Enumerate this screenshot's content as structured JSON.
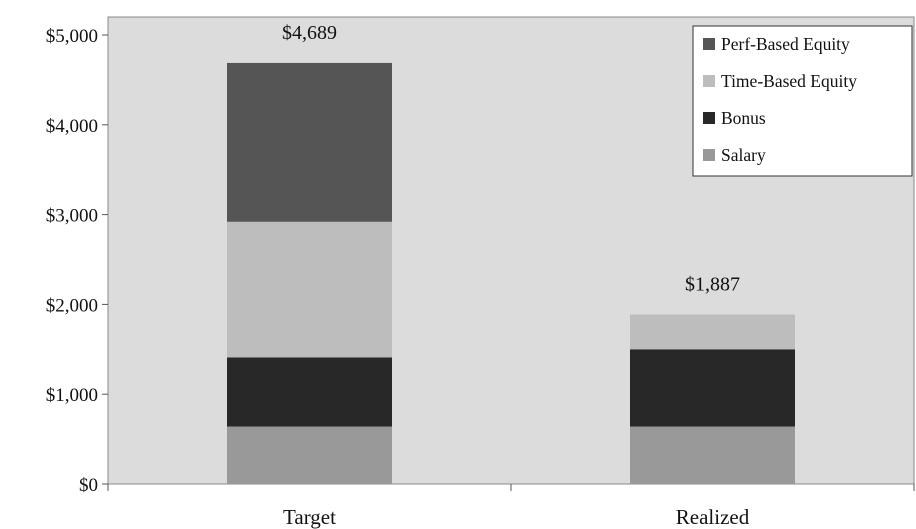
{
  "chart_data": {
    "type": "bar",
    "stacked": true,
    "categories": [
      "Target",
      "Realized"
    ],
    "series": [
      {
        "name": "Salary",
        "values": [
          640,
          640
        ],
        "color": "#999999"
      },
      {
        "name": "Bonus",
        "values": [
          770,
          860
        ],
        "color": "#282828"
      },
      {
        "name": "Time-Based Equity",
        "values": [
          1510,
          387
        ],
        "color": "#bdbdbd"
      },
      {
        "name": "Perf-Based Equity",
        "values": [
          1769,
          0
        ],
        "color": "#555555"
      }
    ],
    "totals": [
      "$4,689",
      "$1,887"
    ],
    "title": "",
    "xlabel": "",
    "ylabel": "",
    "ylim": [
      0,
      5000
    ],
    "yticks": [
      0,
      1000,
      2000,
      3000,
      4000,
      5000
    ],
    "ytick_labels": [
      "$0",
      "$1,000",
      "$2,000",
      "$3,000",
      "$4,000",
      "$5,000"
    ],
    "legend_order": [
      "Perf-Based Equity",
      "Time-Based Equity",
      "Bonus",
      "Salary"
    ],
    "legend_position": "top-right",
    "plot_background": "#dcdcdc",
    "grid": false
  }
}
